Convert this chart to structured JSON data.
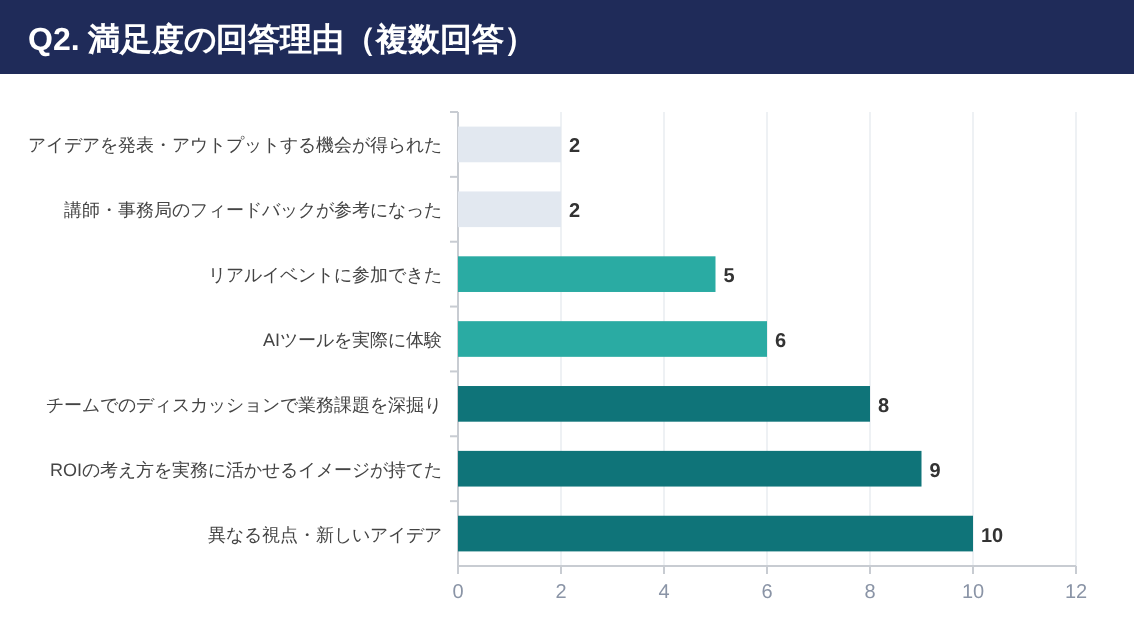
{
  "chart_data": {
    "type": "bar",
    "orientation": "horizontal",
    "title": "Q2. 満足度の回答理由（複数回答）",
    "categories": [
      "アイデアを発表・アウトプットする機会が得られた",
      "講師・事務局のフィードバックが参考になった",
      "リアルイベントに参加できた",
      "AIツールを実際に体験",
      "チームでのディスカッションで業務課題を深掘り",
      "ROIの考え方を実務に活かせるイメージが持てた",
      "異なる視点・新しいアイデア"
    ],
    "values": [
      2,
      2,
      5,
      6,
      8,
      9,
      10
    ],
    "colors": [
      "#e2e8f0",
      "#e2e8f0",
      "#2aaba3",
      "#2aaba3",
      "#0f7479",
      "#0f7479",
      "#0f7479"
    ],
    "xlim": [
      0,
      12
    ],
    "xticks": [
      0,
      2,
      4,
      6,
      8,
      10,
      12
    ],
    "grid": "x",
    "data_labels": true
  }
}
